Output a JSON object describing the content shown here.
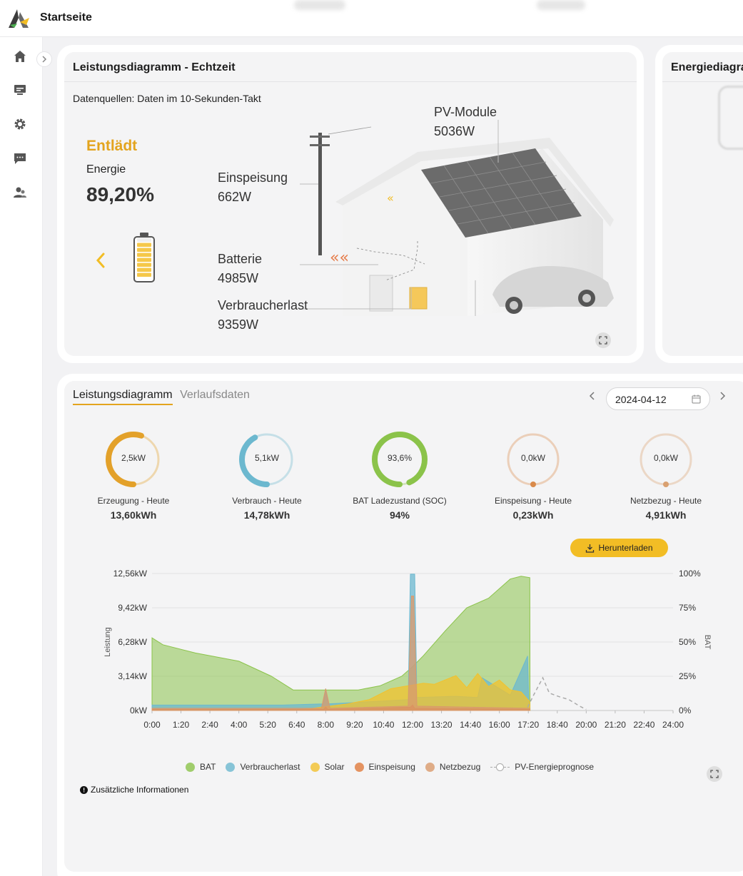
{
  "header": {
    "title": "Startseite"
  },
  "sidebar": {
    "items": [
      {
        "name": "home-icon"
      },
      {
        "name": "devices-icon"
      },
      {
        "name": "settings-icon"
      },
      {
        "name": "messages-icon"
      },
      {
        "name": "users-icon"
      }
    ]
  },
  "realtime": {
    "title": "Leistungsdiagramm - Echtzeit",
    "source_note": "Datenquellen: Daten im 10-Sekunden-Takt",
    "status": "Entlädt",
    "energy_label": "Energie",
    "energy_value": "89,20%",
    "battery_level": 0.892,
    "flows": {
      "pv": {
        "label": "PV-Module",
        "value": "5036W"
      },
      "feed_in": {
        "label": "Einspeisung",
        "value": "662W"
      },
      "battery": {
        "label": "Batterie",
        "value": "4985W"
      },
      "load": {
        "label": "Verbraucherlast",
        "value": "9359W"
      }
    }
  },
  "energy_card": {
    "title": "Energiediagra"
  },
  "history": {
    "tab_active": "Leistungsdiagramm",
    "tab_other": "Verlaufsdaten",
    "date": "2024-04-12",
    "download_label": "Herunterladen",
    "info_label": "Zusätzliche Informationen",
    "kpis": [
      {
        "gauge": "2,5kW",
        "title": "Erzeugung - Heute",
        "value": "13,60kWh",
        "color": "#e3a12a",
        "fraction": 0.55
      },
      {
        "gauge": "5,1kW",
        "title": "Verbrauch - Heute",
        "value": "14,78kWh",
        "color": "#6cb8cf",
        "fraction": 0.42
      },
      {
        "gauge": "93,6%",
        "title": "BAT Ladezustand (SOC)",
        "value": "94%",
        "color": "#8bc34a",
        "fraction": 0.936
      },
      {
        "gauge": "0,0kW",
        "title": "Einspeisung - Heute",
        "value": "0,23kWh",
        "color": "#d98a4a",
        "fraction": 0.0
      },
      {
        "gauge": "0,0kW",
        "title": "Netzbezug - Heute",
        "value": "4,91kWh",
        "color": "#d9a070",
        "fraction": 0.0
      }
    ]
  },
  "chart_data": {
    "type": "area",
    "ylabel": "Leistung",
    "y2label": "BAT",
    "y_ticks": [
      "0kW",
      "3,14kW",
      "6,28kW",
      "9,42kW",
      "12,56kW"
    ],
    "y2_ticks": [
      "0%",
      "25%",
      "50%",
      "75%",
      "100%"
    ],
    "x_ticks": [
      "0:00",
      "1:20",
      "2:40",
      "4:00",
      "5:20",
      "6:40",
      "8:00",
      "9:20",
      "10:40",
      "12:00",
      "13:20",
      "14:40",
      "16:00",
      "17:20",
      "18:40",
      "20:00",
      "21:20",
      "22:40",
      "24:00"
    ],
    "ylim": [
      0,
      12.56
    ],
    "y2lim": [
      0,
      100
    ],
    "xlim_hours": [
      0,
      24
    ],
    "legend": [
      "BAT",
      "Verbraucherlast",
      "Solar",
      "Einspeisung",
      "Netzbezug",
      "PV-Energieprognose"
    ],
    "colors": {
      "BAT": "#8bc34a",
      "Verbraucherlast": "#6cb8cf",
      "Solar": "#f2c12e",
      "Einspeisung": "#e07b3c",
      "Netzbezug": "#d99a6c",
      "PV-Energieprognose": "#aaaaaa"
    },
    "series": [
      {
        "name": "BAT",
        "axis": "y2",
        "x": [
          0,
          0.5,
          2,
          4,
          5.5,
          6.5,
          8,
          9.5,
          10.5,
          11.5,
          12,
          12.5,
          13.5,
          14.5,
          15.5,
          16.5,
          17,
          17.4,
          17.41
        ],
        "y": [
          53,
          48,
          42,
          36,
          25,
          15,
          15,
          15,
          18,
          25,
          32,
          40,
          58,
          75,
          82,
          96,
          98,
          97,
          0
        ]
      },
      {
        "name": "Verbraucherlast",
        "axis": "y",
        "x": [
          0,
          6,
          7.9,
          8,
          8.1,
          10,
          11.8,
          11.9,
          12.1,
          12.2,
          14,
          15,
          15.2,
          16.5,
          17.3,
          17.35,
          17.4,
          17.41
        ],
        "y": [
          0.5,
          0.5,
          0.6,
          2.0,
          0.6,
          0.8,
          1.0,
          12.5,
          12.5,
          1.2,
          1.3,
          1.2,
          3.0,
          1.4,
          5.0,
          1.0,
          0.2,
          0
        ]
      },
      {
        "name": "Solar",
        "axis": "y",
        "x": [
          7,
          9,
          10,
          11,
          12.5,
          13,
          14,
          14.5,
          15,
          15.5,
          16,
          16.5,
          17,
          17.4,
          17.41
        ],
        "y": [
          0.1,
          0.6,
          1.0,
          2.0,
          2.5,
          2.4,
          3.2,
          2.1,
          3.4,
          2.2,
          2.8,
          1.9,
          1.7,
          0.8,
          0
        ]
      },
      {
        "name": "Einspeisung",
        "axis": "y",
        "x": [
          0,
          7.9,
          8,
          8.1,
          11.9,
          12.0,
          12.1,
          17.4
        ],
        "y": [
          0.1,
          0.1,
          0.3,
          0.1,
          0.3,
          0.5,
          0.2,
          0.1
        ]
      },
      {
        "name": "Netzbezug",
        "axis": "y",
        "x": [
          0,
          7.8,
          8,
          8.2,
          11.8,
          11.95,
          12.05,
          12.2,
          17.4
        ],
        "y": [
          0.2,
          0.2,
          2.0,
          0.2,
          0.4,
          10.5,
          10.5,
          0.4,
          0.2
        ]
      },
      {
        "name": "PV-Energieprognose",
        "axis": "y",
        "x": [
          17.3,
          17.6,
          18,
          18.3,
          18.7,
          19.2,
          19.7,
          20
        ],
        "y": [
          0.3,
          1.5,
          3.0,
          1.6,
          1.3,
          1.0,
          0.4,
          0.1
        ]
      }
    ]
  }
}
